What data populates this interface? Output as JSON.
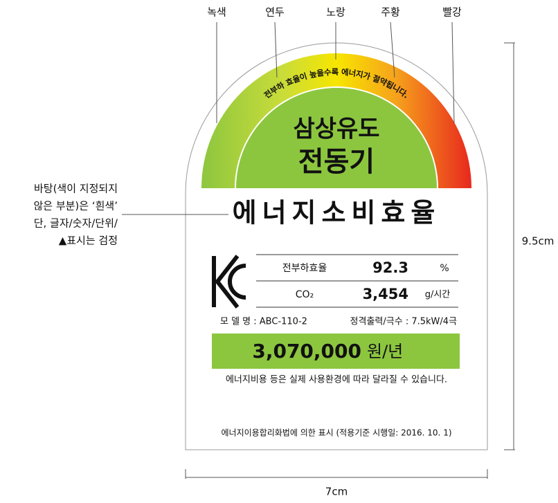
{
  "color_labels": [
    "녹색",
    "연두",
    "노랑",
    "주황",
    "빨강"
  ],
  "arc_text": "전부하 효율이 높을수록 에너지가 절약됩니다.",
  "product": [
    "삼상유도",
    "전동기"
  ],
  "title": "에너지소비효율",
  "table": {
    "rows": [
      [
        "전부하효율",
        "92.3",
        "%"
      ],
      [
        "CO₂",
        "3,454",
        "g/시간"
      ]
    ]
  },
  "model": "모 델 명 : ABC-110-2",
  "rating": "정격출력/극수 : 7.5kW/4극",
  "cost": {
    "value": "3,070,000",
    "unit": "원/년"
  },
  "note": "에너지비용 등은 실제 사용환경에 따라 달라질 수 있습니다.",
  "footer": "에너지이용합리화법에 의한 표시 (적용기준 시행일: 2016. 10. 1)",
  "annotation": [
    "바탕(색이 지정되지",
    "않은 부분)은 ‘흰색’",
    "단, 글자/숫자/단위/",
    "▲표시는 검정"
  ],
  "dimensions": {
    "height": "9.5cm",
    "width": "7cm"
  }
}
